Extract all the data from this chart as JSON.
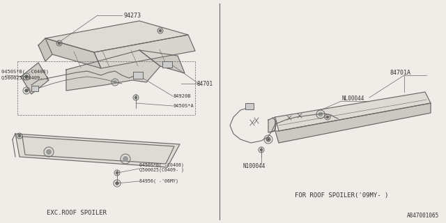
{
  "bg_color": "#f0ede8",
  "line_color": "#666666",
  "text_color": "#333333",
  "fill_color": "#e8e4de",
  "title_left": "EXC.ROOF SPOILER",
  "title_right": "FOR ROOF SPOILER('09MY- )",
  "diagram_id": "A847001065"
}
